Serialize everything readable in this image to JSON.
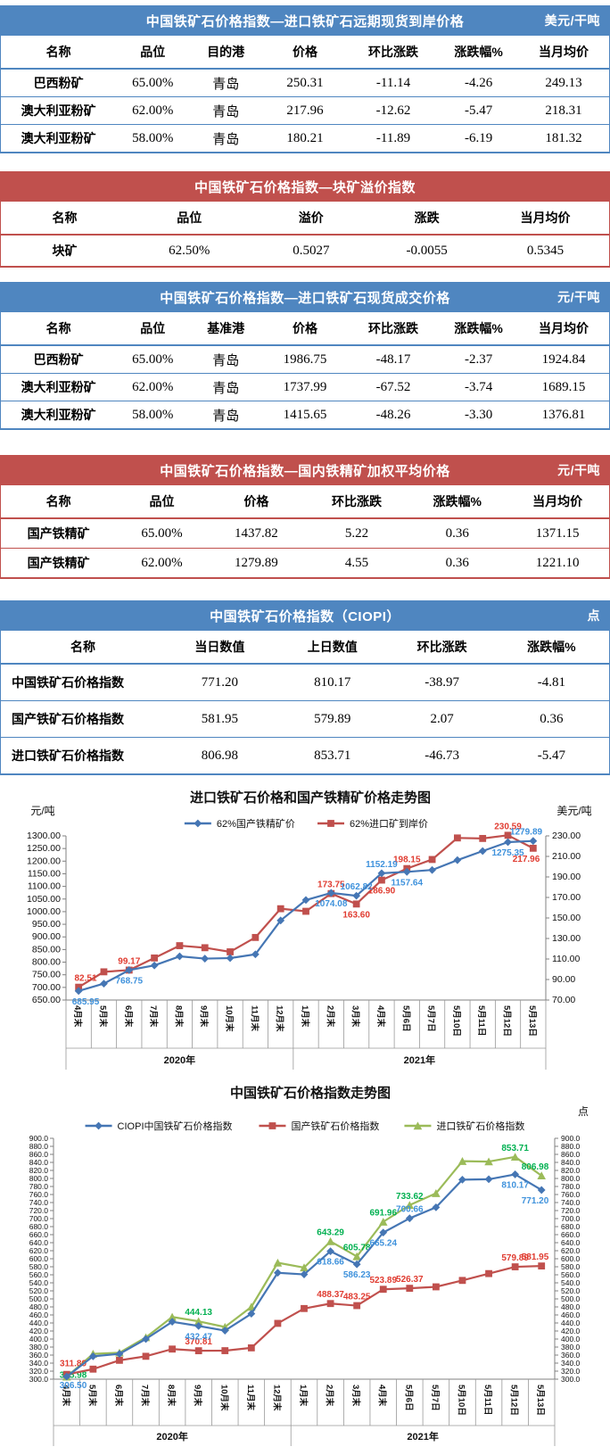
{
  "colors": {
    "blue_theme": "#4f86c0",
    "red_theme": "#c0504d",
    "series_blue": "#4576b4",
    "series_red": "#c0504d",
    "series_green": "#9bbb59",
    "label_blue": "#3f92dc",
    "label_red": "#e03c31",
    "label_green": "#00b050"
  },
  "tables": [
    {
      "id": "forward_price",
      "accent": "blue",
      "title": "中国铁矿石价格指数—进口铁矿石远期现货到岸价格",
      "unit": "美元/干吨",
      "columns": [
        "名称",
        "品位",
        "目的港",
        "价格",
        "环比涨跌",
        "涨跌幅%",
        "当月均价"
      ],
      "rows": [
        [
          "巴西粉矿",
          "65.00%",
          "青岛",
          "250.31",
          "-11.14",
          "-4.26",
          "249.13"
        ],
        [
          "澳大利亚粉矿",
          "62.00%",
          "青岛",
          "217.96",
          "-12.62",
          "-5.47",
          "218.31"
        ],
        [
          "澳大利亚粉矿",
          "58.00%",
          "青岛",
          "180.21",
          "-11.89",
          "-6.19",
          "181.32"
        ]
      ]
    },
    {
      "id": "lump_premium",
      "accent": "red",
      "title": "中国铁矿石价格指数—块矿溢价指数",
      "unit": "",
      "columns": [
        "名称",
        "品位",
        "溢价",
        "涨跌",
        "当月均价"
      ],
      "rows": [
        [
          "块矿",
          "62.50%",
          "0.5027",
          "-0.0055",
          "0.5345"
        ]
      ]
    },
    {
      "id": "import_spot",
      "accent": "blue",
      "title": "中国铁矿石价格指数—进口铁矿石现货成交价格",
      "unit": "元/干吨",
      "columns": [
        "名称",
        "品位",
        "基准港",
        "价格",
        "环比涨跌",
        "涨跌幅%",
        "当月均价"
      ],
      "rows": [
        [
          "巴西粉矿",
          "65.00%",
          "青岛",
          "1986.75",
          "-48.17",
          "-2.37",
          "1924.84"
        ],
        [
          "澳大利亚粉矿",
          "62.00%",
          "青岛",
          "1737.99",
          "-67.52",
          "-3.74",
          "1689.15"
        ],
        [
          "澳大利亚粉矿",
          "58.00%",
          "青岛",
          "1415.65",
          "-48.26",
          "-3.30",
          "1376.81"
        ]
      ]
    },
    {
      "id": "domestic_concentrate",
      "accent": "red",
      "title": "中国铁矿石价格指数—国内铁精矿加权平均价格",
      "unit": "元/干吨",
      "columns": [
        "名称",
        "品位",
        "价格",
        "环比涨跌",
        "涨跌幅%",
        "当月均价"
      ],
      "rows": [
        [
          "国产铁精矿",
          "65.00%",
          "1437.82",
          "5.22",
          "0.36",
          "1371.15"
        ],
        [
          "国产铁精矿",
          "62.00%",
          "1279.89",
          "4.55",
          "0.36",
          "1221.10"
        ]
      ]
    },
    {
      "id": "ciopi",
      "accent": "blue",
      "title": "中国铁矿石价格指数（CIOPI）",
      "unit": "点",
      "columns": [
        "名称",
        "当日数值",
        "上日数值",
        "环比涨跌",
        "涨跌幅%"
      ],
      "rows": [
        [
          "中国铁矿石价格指数",
          "771.20",
          "810.17",
          "-38.97",
          "-4.81"
        ],
        [
          "国产铁矿石价格指数",
          "581.95",
          "579.89",
          "2.07",
          "0.36"
        ],
        [
          "进口铁矿石价格指数",
          "806.98",
          "853.71",
          "-46.73",
          "-5.47"
        ]
      ]
    }
  ],
  "chart_data": [
    {
      "type": "line",
      "title": "进口铁矿石价格和国产铁精矿价格走势图",
      "legend_position": "top",
      "gridlines": false,
      "categories": [
        "4月末",
        "5月末",
        "6月末",
        "7月末",
        "8月末",
        "9月末",
        "10月末",
        "11月末",
        "12月末",
        "1月末",
        "2月末",
        "3月末",
        "4月末",
        "5月6日",
        "5月7日",
        "5月10日",
        "5月11日",
        "5月12日",
        "5月13日"
      ],
      "year_groups": [
        {
          "label": "2020年",
          "count": 9
        },
        {
          "label": "2021年",
          "count": 10
        }
      ],
      "left_axis": {
        "unit": "元/吨",
        "min": 650,
        "max": 1300,
        "step": 50,
        "decimals": 2
      },
      "right_axis": {
        "unit": "美元/吨",
        "min": 70,
        "max": 230,
        "step": 20,
        "decimals": 2
      },
      "series": [
        {
          "name": "62%国产铁精矿价",
          "axis": "left",
          "marker": "diamond",
          "color": "#4576b4",
          "label_color": "#3f92dc",
          "values": [
            685.95,
            715,
            768.75,
            787,
            823,
            814,
            816,
            831,
            965,
            1046,
            1074.08,
            1062.82,
            1152.19,
            1157.64,
            1165,
            1204,
            1240,
            1275.35,
            1279.89
          ],
          "point_labels": {
            "0": "685.95",
            "2": "768.75",
            "10": "1074.08",
            "11": "1062.82",
            "12": "1152.19",
            "13": "1157.64",
            "17": "1275.35",
            "18": "1279.89"
          }
        },
        {
          "name": "62%进口矿到岸价",
          "axis": "right",
          "marker": "square",
          "color": "#c0504d",
          "label_color": "#e03c31",
          "values": [
            82.51,
            97.5,
            99.17,
            111,
            123,
            121,
            117,
            131,
            159,
            156.5,
            173.75,
            163.6,
            186.9,
            198.15,
            207,
            228,
            227.5,
            230.59,
            217.96
          ],
          "point_labels": {
            "0": "82.51",
            "2": "99.17",
            "10": "173.75",
            "11": "163.60",
            "12": "186.90",
            "13": "198.15",
            "17": "230.59",
            "18": "217.96"
          }
        }
      ]
    },
    {
      "type": "line",
      "title": "中国铁矿石价格指数走势图",
      "legend_position": "top",
      "gridlines": false,
      "categories": [
        "4月末",
        "5月末",
        "6月末",
        "7月末",
        "8月末",
        "9月末",
        "10月末",
        "11月末",
        "12月末",
        "1月末",
        "2月末",
        "3月末",
        "4月末",
        "5月6日",
        "5月7日",
        "5月10日",
        "5月11日",
        "5月12日",
        "5月13日"
      ],
      "year_groups": [
        {
          "label": "2020年",
          "count": 9
        },
        {
          "label": "2021年",
          "count": 10
        }
      ],
      "left_axis": {
        "unit": "",
        "min": 300,
        "max": 900,
        "step": 20,
        "decimals": 1
      },
      "right_axis": {
        "unit": "点",
        "min": 300,
        "max": 900,
        "step": 20,
        "decimals": 1
      },
      "series": [
        {
          "name": "CIOPI中国铁矿石价格指数",
          "axis": "left",
          "marker": "diamond",
          "color": "#4576b4",
          "label_color": "#3f92dc",
          "values": [
            306.5,
            357,
            363,
            400,
            443,
            432.47,
            421,
            463,
            565,
            561,
            618.66,
            586.23,
            665.24,
            700.66,
            728,
            797,
            798,
            810.17,
            771.2
          ],
          "point_labels": {
            "0": "306.50",
            "5": "432.47",
            "10": "618.66",
            "11": "586.23",
            "12": "665.24",
            "13": "700.66",
            "17": "810.17",
            "18": "771.20"
          }
        },
        {
          "name": "国产铁矿石价格指数",
          "axis": "left",
          "marker": "square",
          "color": "#c0504d",
          "label_color": "#e03c31",
          "values": [
            311.89,
            325,
            347,
            357,
            375,
            370.81,
            371,
            378,
            439,
            476,
            488.37,
            483.25,
            523.89,
            526.37,
            530,
            546,
            563,
            579.89,
            581.95
          ],
          "point_labels": {
            "0": "311.89",
            "5": "370.81",
            "10": "488.37",
            "11": "483.25",
            "12": "523.89",
            "13": "526.37",
            "17": "579.89",
            "18": "581.95"
          }
        },
        {
          "name": "进口铁矿石价格指数",
          "axis": "left",
          "marker": "triangle",
          "color": "#9bbb59",
          "label_color": "#00b050",
          "values": [
            305.98,
            363,
            366,
            404,
            455,
            444.13,
            430,
            480,
            590,
            578,
            643.29,
            605.78,
            691.96,
            733.62,
            763,
            843,
            842,
            853.71,
            806.98
          ],
          "point_labels": {
            "0": "305.98",
            "5": "444.13",
            "10": "643.29",
            "11": "605.78",
            "12": "691.96",
            "13": "733.62",
            "17": "853.71",
            "18": "806.98"
          }
        }
      ]
    }
  ]
}
